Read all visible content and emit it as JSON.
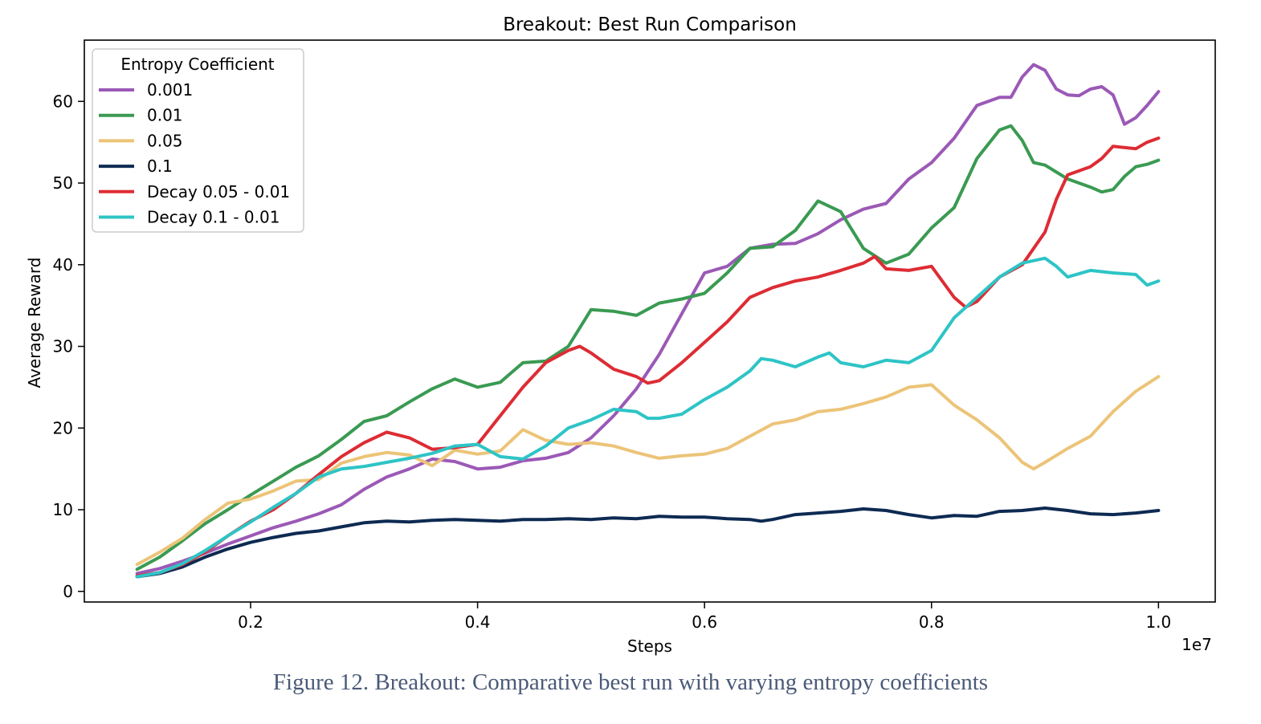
{
  "caption": "Figure 12. Breakout: Comparative best run with varying entropy coefficients",
  "chart_data": {
    "type": "line",
    "title": "Breakout: Best Run Comparison",
    "xlabel": "Steps",
    "ylabel": "Average Reward",
    "x_offset_label": "1e7",
    "xlim": [
      0.0535,
      1.05
    ],
    "ylim": [
      -1.3,
      67.5
    ],
    "x_ticks": [
      0.2,
      0.4,
      0.6,
      0.8,
      1.0
    ],
    "x_tick_labels": [
      "0.2",
      "0.4",
      "0.6",
      "0.8",
      "1.0"
    ],
    "y_ticks": [
      0,
      10,
      20,
      30,
      40,
      50,
      60
    ],
    "y_tick_labels": [
      "0",
      "10",
      "20",
      "30",
      "40",
      "50",
      "60"
    ],
    "grid": false,
    "legend_title": "Entropy Coefficient",
    "legend_position": "upper left",
    "series": [
      {
        "name": "0.001",
        "color": "#9b59b6",
        "points": [
          [
            0.1,
            2.2
          ],
          [
            0.12,
            2.8
          ],
          [
            0.14,
            3.7
          ],
          [
            0.16,
            4.7
          ],
          [
            0.18,
            5.8
          ],
          [
            0.2,
            6.8
          ],
          [
            0.22,
            7.8
          ],
          [
            0.24,
            8.6
          ],
          [
            0.26,
            9.5
          ],
          [
            0.28,
            10.6
          ],
          [
            0.3,
            12.5
          ],
          [
            0.32,
            14.0
          ],
          [
            0.34,
            15.0
          ],
          [
            0.36,
            16.2
          ],
          [
            0.38,
            15.9
          ],
          [
            0.4,
            15.0
          ],
          [
            0.42,
            15.2
          ],
          [
            0.44,
            16.0
          ],
          [
            0.46,
            16.3
          ],
          [
            0.48,
            17.0
          ],
          [
            0.5,
            18.8
          ],
          [
            0.52,
            21.5
          ],
          [
            0.54,
            24.8
          ],
          [
            0.56,
            29.0
          ],
          [
            0.58,
            34.0
          ],
          [
            0.6,
            39.0
          ],
          [
            0.62,
            39.8
          ],
          [
            0.64,
            42.0
          ],
          [
            0.66,
            42.5
          ],
          [
            0.68,
            42.6
          ],
          [
            0.7,
            43.8
          ],
          [
            0.72,
            45.5
          ],
          [
            0.74,
            46.8
          ],
          [
            0.76,
            47.5
          ],
          [
            0.78,
            50.5
          ],
          [
            0.8,
            52.5
          ],
          [
            0.82,
            55.5
          ],
          [
            0.84,
            59.5
          ],
          [
            0.86,
            60.5
          ],
          [
            0.87,
            60.5
          ],
          [
            0.88,
            63.0
          ],
          [
            0.89,
            64.5
          ],
          [
            0.9,
            63.8
          ],
          [
            0.91,
            61.5
          ],
          [
            0.92,
            60.8
          ],
          [
            0.93,
            60.7
          ],
          [
            0.94,
            61.5
          ],
          [
            0.95,
            61.8
          ],
          [
            0.96,
            60.8
          ],
          [
            0.97,
            57.2
          ],
          [
            0.98,
            58.0
          ],
          [
            0.99,
            59.5
          ],
          [
            1.0,
            61.2
          ]
        ]
      },
      {
        "name": "0.01",
        "color": "#3a9a52",
        "points": [
          [
            0.1,
            2.7
          ],
          [
            0.12,
            4.2
          ],
          [
            0.14,
            6.2
          ],
          [
            0.16,
            8.3
          ],
          [
            0.18,
            10.0
          ],
          [
            0.2,
            11.8
          ],
          [
            0.22,
            13.5
          ],
          [
            0.24,
            15.2
          ],
          [
            0.26,
            16.6
          ],
          [
            0.28,
            18.6
          ],
          [
            0.3,
            20.8
          ],
          [
            0.32,
            21.5
          ],
          [
            0.34,
            23.2
          ],
          [
            0.36,
            24.8
          ],
          [
            0.38,
            26.0
          ],
          [
            0.4,
            25.0
          ],
          [
            0.42,
            25.6
          ],
          [
            0.44,
            28.0
          ],
          [
            0.46,
            28.2
          ],
          [
            0.48,
            30.0
          ],
          [
            0.5,
            34.5
          ],
          [
            0.52,
            34.3
          ],
          [
            0.54,
            33.8
          ],
          [
            0.56,
            35.3
          ],
          [
            0.58,
            35.8
          ],
          [
            0.6,
            36.5
          ],
          [
            0.62,
            39.0
          ],
          [
            0.64,
            42.0
          ],
          [
            0.66,
            42.2
          ],
          [
            0.68,
            44.2
          ],
          [
            0.7,
            47.8
          ],
          [
            0.72,
            46.5
          ],
          [
            0.74,
            42.0
          ],
          [
            0.76,
            40.2
          ],
          [
            0.78,
            41.3
          ],
          [
            0.8,
            44.5
          ],
          [
            0.82,
            47.0
          ],
          [
            0.84,
            53.0
          ],
          [
            0.86,
            56.5
          ],
          [
            0.87,
            57.0
          ],
          [
            0.88,
            55.2
          ],
          [
            0.89,
            52.5
          ],
          [
            0.9,
            52.2
          ],
          [
            0.92,
            50.5
          ],
          [
            0.94,
            49.5
          ],
          [
            0.95,
            48.9
          ],
          [
            0.96,
            49.2
          ],
          [
            0.97,
            50.8
          ],
          [
            0.98,
            52.0
          ],
          [
            0.99,
            52.3
          ],
          [
            1.0,
            52.8
          ]
        ]
      },
      {
        "name": "0.05",
        "color": "#ecc478",
        "points": [
          [
            0.1,
            3.3
          ],
          [
            0.12,
            4.8
          ],
          [
            0.14,
            6.5
          ],
          [
            0.16,
            8.8
          ],
          [
            0.18,
            10.8
          ],
          [
            0.2,
            11.3
          ],
          [
            0.22,
            12.3
          ],
          [
            0.24,
            13.5
          ],
          [
            0.26,
            13.7
          ],
          [
            0.28,
            15.7
          ],
          [
            0.3,
            16.5
          ],
          [
            0.32,
            17.0
          ],
          [
            0.34,
            16.7
          ],
          [
            0.36,
            15.4
          ],
          [
            0.38,
            17.3
          ],
          [
            0.4,
            16.8
          ],
          [
            0.42,
            17.2
          ],
          [
            0.44,
            19.8
          ],
          [
            0.46,
            18.5
          ],
          [
            0.48,
            18.0
          ],
          [
            0.5,
            18.2
          ],
          [
            0.52,
            17.8
          ],
          [
            0.54,
            17.0
          ],
          [
            0.56,
            16.3
          ],
          [
            0.58,
            16.6
          ],
          [
            0.6,
            16.8
          ],
          [
            0.62,
            17.5
          ],
          [
            0.64,
            19.0
          ],
          [
            0.66,
            20.5
          ],
          [
            0.68,
            21.0
          ],
          [
            0.7,
            22.0
          ],
          [
            0.72,
            22.3
          ],
          [
            0.74,
            23.0
          ],
          [
            0.76,
            23.8
          ],
          [
            0.78,
            25.0
          ],
          [
            0.8,
            25.3
          ],
          [
            0.82,
            22.8
          ],
          [
            0.84,
            21.0
          ],
          [
            0.86,
            18.8
          ],
          [
            0.88,
            15.8
          ],
          [
            0.89,
            15.0
          ],
          [
            0.9,
            15.8
          ],
          [
            0.92,
            17.5
          ],
          [
            0.94,
            19.0
          ],
          [
            0.96,
            22.0
          ],
          [
            0.98,
            24.5
          ],
          [
            1.0,
            26.3
          ]
        ]
      },
      {
        "name": "0.1",
        "color": "#0d2a52",
        "points": [
          [
            0.1,
            1.8
          ],
          [
            0.12,
            2.2
          ],
          [
            0.14,
            3.0
          ],
          [
            0.16,
            4.2
          ],
          [
            0.18,
            5.2
          ],
          [
            0.2,
            6.0
          ],
          [
            0.22,
            6.6
          ],
          [
            0.24,
            7.1
          ],
          [
            0.26,
            7.4
          ],
          [
            0.28,
            7.9
          ],
          [
            0.3,
            8.4
          ],
          [
            0.32,
            8.6
          ],
          [
            0.34,
            8.5
          ],
          [
            0.36,
            8.7
          ],
          [
            0.38,
            8.8
          ],
          [
            0.4,
            8.7
          ],
          [
            0.42,
            8.6
          ],
          [
            0.44,
            8.8
          ],
          [
            0.46,
            8.8
          ],
          [
            0.48,
            8.9
          ],
          [
            0.5,
            8.8
          ],
          [
            0.52,
            9.0
          ],
          [
            0.54,
            8.9
          ],
          [
            0.56,
            9.2
          ],
          [
            0.58,
            9.1
          ],
          [
            0.6,
            9.1
          ],
          [
            0.62,
            8.9
          ],
          [
            0.64,
            8.8
          ],
          [
            0.65,
            8.6
          ],
          [
            0.66,
            8.8
          ],
          [
            0.68,
            9.4
          ],
          [
            0.7,
            9.6
          ],
          [
            0.72,
            9.8
          ],
          [
            0.74,
            10.1
          ],
          [
            0.76,
            9.9
          ],
          [
            0.78,
            9.4
          ],
          [
            0.8,
            9.0
          ],
          [
            0.82,
            9.3
          ],
          [
            0.84,
            9.2
          ],
          [
            0.86,
            9.8
          ],
          [
            0.88,
            9.9
          ],
          [
            0.9,
            10.2
          ],
          [
            0.92,
            9.9
          ],
          [
            0.94,
            9.5
          ],
          [
            0.96,
            9.4
          ],
          [
            0.98,
            9.6
          ],
          [
            1.0,
            9.9
          ]
        ]
      },
      {
        "name": "Decay 0.05 - 0.01",
        "color": "#dd2c34",
        "points": [
          [
            0.1,
            1.9
          ],
          [
            0.12,
            2.3
          ],
          [
            0.14,
            3.3
          ],
          [
            0.16,
            4.8
          ],
          [
            0.18,
            6.8
          ],
          [
            0.2,
            8.6
          ],
          [
            0.22,
            10.0
          ],
          [
            0.24,
            12.0
          ],
          [
            0.26,
            14.3
          ],
          [
            0.28,
            16.5
          ],
          [
            0.3,
            18.2
          ],
          [
            0.32,
            19.5
          ],
          [
            0.34,
            18.8
          ],
          [
            0.36,
            17.4
          ],
          [
            0.38,
            17.6
          ],
          [
            0.4,
            18.0
          ],
          [
            0.42,
            21.5
          ],
          [
            0.44,
            25.0
          ],
          [
            0.46,
            28.0
          ],
          [
            0.48,
            29.5
          ],
          [
            0.49,
            30.0
          ],
          [
            0.5,
            29.2
          ],
          [
            0.52,
            27.2
          ],
          [
            0.54,
            26.3
          ],
          [
            0.55,
            25.5
          ],
          [
            0.56,
            25.8
          ],
          [
            0.58,
            28.0
          ],
          [
            0.6,
            30.5
          ],
          [
            0.62,
            33.0
          ],
          [
            0.64,
            36.0
          ],
          [
            0.66,
            37.2
          ],
          [
            0.68,
            38.0
          ],
          [
            0.7,
            38.5
          ],
          [
            0.72,
            39.3
          ],
          [
            0.74,
            40.2
          ],
          [
            0.75,
            41.0
          ],
          [
            0.76,
            39.5
          ],
          [
            0.78,
            39.3
          ],
          [
            0.8,
            39.8
          ],
          [
            0.82,
            36.0
          ],
          [
            0.83,
            34.8
          ],
          [
            0.84,
            35.5
          ],
          [
            0.86,
            38.5
          ],
          [
            0.88,
            40.0
          ],
          [
            0.9,
            44.0
          ],
          [
            0.91,
            48.0
          ],
          [
            0.92,
            51.0
          ],
          [
            0.94,
            52.0
          ],
          [
            0.95,
            53.0
          ],
          [
            0.96,
            54.5
          ],
          [
            0.98,
            54.2
          ],
          [
            0.99,
            55.0
          ],
          [
            1.0,
            55.5
          ]
        ]
      },
      {
        "name": "Decay 0.1 - 0.01",
        "color": "#2ec4c6",
        "points": [
          [
            0.1,
            1.8
          ],
          [
            0.12,
            2.3
          ],
          [
            0.14,
            3.4
          ],
          [
            0.16,
            5.0
          ],
          [
            0.18,
            6.8
          ],
          [
            0.2,
            8.5
          ],
          [
            0.22,
            10.3
          ],
          [
            0.24,
            12.0
          ],
          [
            0.26,
            14.0
          ],
          [
            0.28,
            15.0
          ],
          [
            0.3,
            15.3
          ],
          [
            0.32,
            15.8
          ],
          [
            0.34,
            16.3
          ],
          [
            0.36,
            16.9
          ],
          [
            0.38,
            17.8
          ],
          [
            0.4,
            18.0
          ],
          [
            0.42,
            16.5
          ],
          [
            0.44,
            16.2
          ],
          [
            0.46,
            17.8
          ],
          [
            0.48,
            20.0
          ],
          [
            0.5,
            21.0
          ],
          [
            0.52,
            22.3
          ],
          [
            0.54,
            22.0
          ],
          [
            0.55,
            21.2
          ],
          [
            0.56,
            21.2
          ],
          [
            0.58,
            21.7
          ],
          [
            0.6,
            23.5
          ],
          [
            0.62,
            25.0
          ],
          [
            0.64,
            27.0
          ],
          [
            0.65,
            28.5
          ],
          [
            0.66,
            28.3
          ],
          [
            0.68,
            27.5
          ],
          [
            0.7,
            28.7
          ],
          [
            0.71,
            29.2
          ],
          [
            0.72,
            28.0
          ],
          [
            0.74,
            27.5
          ],
          [
            0.76,
            28.3
          ],
          [
            0.78,
            28.0
          ],
          [
            0.8,
            29.5
          ],
          [
            0.82,
            33.5
          ],
          [
            0.84,
            36.0
          ],
          [
            0.86,
            38.5
          ],
          [
            0.88,
            40.2
          ],
          [
            0.9,
            40.8
          ],
          [
            0.91,
            39.8
          ],
          [
            0.92,
            38.5
          ],
          [
            0.94,
            39.3
          ],
          [
            0.96,
            39.0
          ],
          [
            0.98,
            38.8
          ],
          [
            0.99,
            37.5
          ],
          [
            1.0,
            38.0
          ]
        ]
      }
    ]
  }
}
